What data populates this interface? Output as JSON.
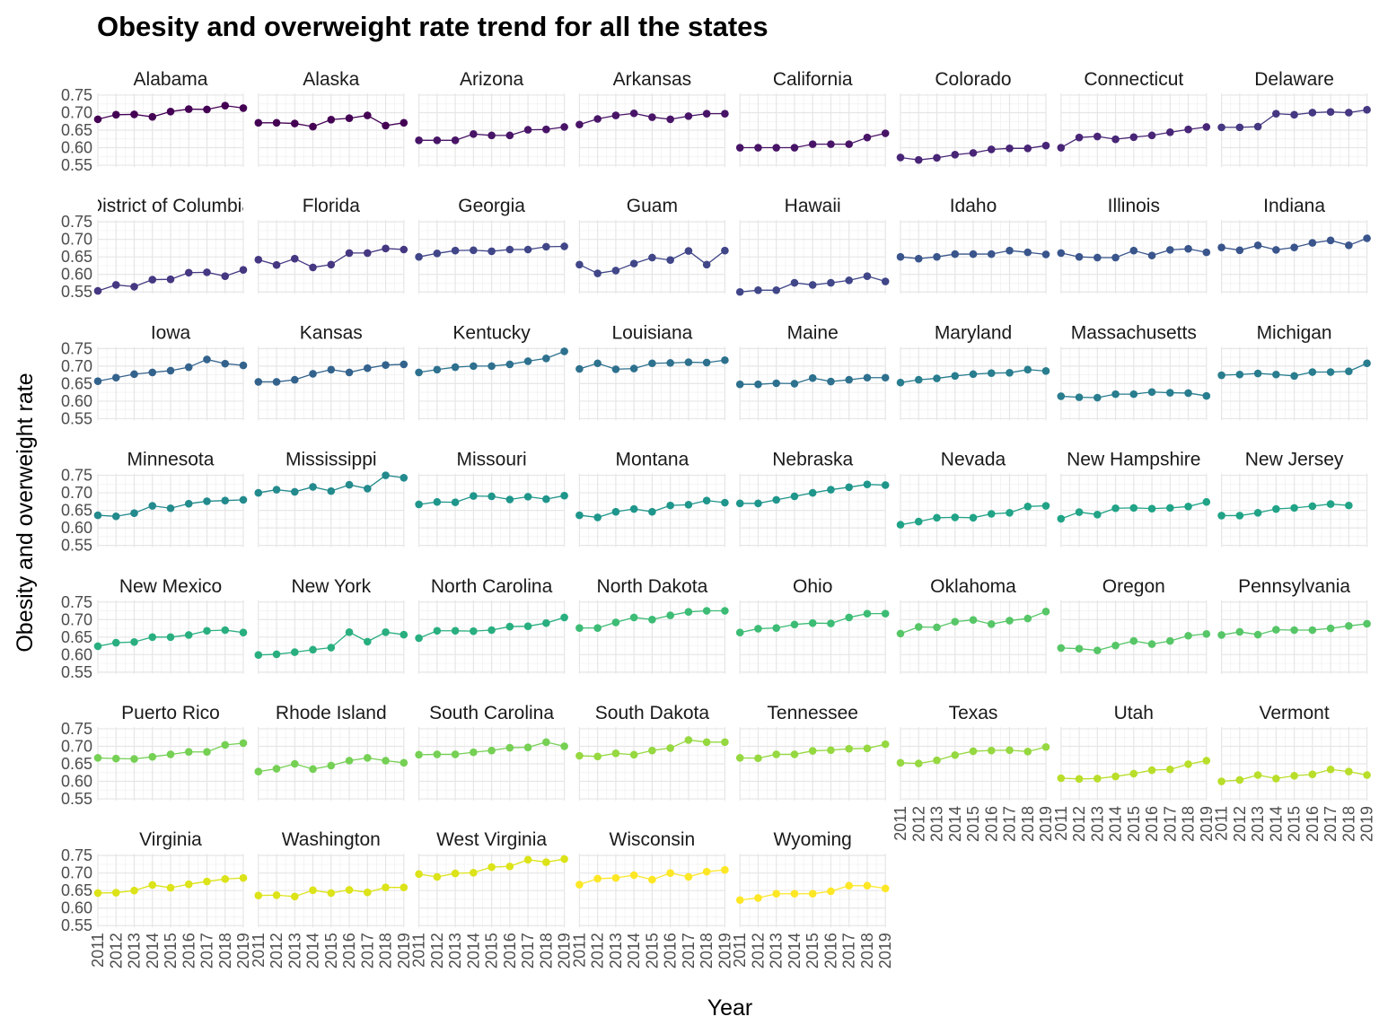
{
  "chart_data": {
    "type": "line",
    "title": "Obesity and overweight rate trend for all the states",
    "xlabel": "Year",
    "ylabel": "Obesity and overweight rate",
    "x": [
      2011,
      2012,
      2013,
      2014,
      2015,
      2016,
      2017,
      2018,
      2019
    ],
    "x_tick_labels": [
      "2011",
      "2012",
      "2013",
      "2014",
      "2015",
      "2016",
      "2017",
      "2018",
      "2019"
    ],
    "y_tick_labels": [
      "0.75",
      "0.70",
      "0.65",
      "0.60",
      "0.55"
    ],
    "y_ticks": [
      0.75,
      0.7,
      0.65,
      0.6,
      0.55
    ],
    "ylim": [
      0.545,
      0.755
    ],
    "xlim": [
      2011,
      2019
    ],
    "facet_columns": 8,
    "grid": true,
    "legend": "none",
    "colors": [
      "#440154",
      "#481467",
      "#482576",
      "#453781",
      "#404688",
      "#39558c",
      "#33638d",
      "#2d718e",
      "#287d8e",
      "#238a8d",
      "#1f968b",
      "#20a386",
      "#29af7f",
      "#3cbc75",
      "#56c667",
      "#75d054",
      "#95d840",
      "#b8de29",
      "#dce318",
      "#fde725"
    ],
    "series": [
      {
        "name": "Alabama",
        "values": [
          0.681,
          0.694,
          0.695,
          0.688,
          0.703,
          0.71,
          0.709,
          0.72,
          0.713
        ]
      },
      {
        "name": "Alaska",
        "values": [
          0.671,
          0.671,
          0.669,
          0.66,
          0.68,
          0.684,
          0.692,
          0.663,
          0.671
        ]
      },
      {
        "name": "Arizona",
        "values": [
          0.621,
          0.621,
          0.621,
          0.639,
          0.635,
          0.635,
          0.651,
          0.652,
          0.659
        ]
      },
      {
        "name": "Arkansas",
        "values": [
          0.666,
          0.682,
          0.692,
          0.698,
          0.687,
          0.681,
          0.69,
          0.697,
          0.697
        ]
      },
      {
        "name": "California",
        "values": [
          0.6,
          0.6,
          0.6,
          0.6,
          0.61,
          0.61,
          0.61,
          0.629,
          0.641
        ]
      },
      {
        "name": "Colorado",
        "values": [
          0.572,
          0.565,
          0.571,
          0.58,
          0.585,
          0.595,
          0.598,
          0.598,
          0.606
        ]
      },
      {
        "name": "Connecticut",
        "values": [
          0.6,
          0.629,
          0.632,
          0.624,
          0.63,
          0.635,
          0.644,
          0.652,
          0.659
        ]
      },
      {
        "name": "Delaware",
        "values": [
          0.658,
          0.658,
          0.66,
          0.697,
          0.694,
          0.7,
          0.702,
          0.7,
          0.708
        ]
      },
      {
        "name": "District of Columbia",
        "values": [
          0.553,
          0.57,
          0.565,
          0.585,
          0.586,
          0.605,
          0.606,
          0.595,
          0.613
        ]
      },
      {
        "name": "Florida",
        "values": [
          0.642,
          0.627,
          0.645,
          0.62,
          0.628,
          0.661,
          0.661,
          0.674,
          0.671
        ]
      },
      {
        "name": "Georgia",
        "values": [
          0.65,
          0.66,
          0.668,
          0.669,
          0.666,
          0.671,
          0.671,
          0.679,
          0.68
        ]
      },
      {
        "name": "Guam",
        "values": [
          0.628,
          0.603,
          0.611,
          0.631,
          0.648,
          0.641,
          0.667,
          0.628,
          0.668
        ]
      },
      {
        "name": "Hawaii",
        "values": [
          0.55,
          0.555,
          0.555,
          0.576,
          0.57,
          0.576,
          0.583,
          0.595,
          0.58
        ]
      },
      {
        "name": "Idaho",
        "values": [
          0.65,
          0.645,
          0.65,
          0.658,
          0.658,
          0.658,
          0.668,
          0.663,
          0.657
        ]
      },
      {
        "name": "Illinois",
        "values": [
          0.661,
          0.65,
          0.648,
          0.648,
          0.668,
          0.654,
          0.67,
          0.673,
          0.663
        ]
      },
      {
        "name": "Indiana",
        "values": [
          0.677,
          0.669,
          0.683,
          0.67,
          0.677,
          0.69,
          0.697,
          0.683,
          0.703
        ]
      },
      {
        "name": "Iowa",
        "values": [
          0.657,
          0.667,
          0.677,
          0.682,
          0.687,
          0.697,
          0.719,
          0.707,
          0.702
        ]
      },
      {
        "name": "Kansas",
        "values": [
          0.655,
          0.655,
          0.661,
          0.678,
          0.69,
          0.682,
          0.694,
          0.703,
          0.705
        ]
      },
      {
        "name": "Kentucky",
        "values": [
          0.682,
          0.69,
          0.697,
          0.7,
          0.7,
          0.705,
          0.714,
          0.722,
          0.742
        ]
      },
      {
        "name": "Louisiana",
        "values": [
          0.692,
          0.708,
          0.691,
          0.693,
          0.708,
          0.709,
          0.711,
          0.71,
          0.717
        ]
      },
      {
        "name": "Maine",
        "values": [
          0.648,
          0.648,
          0.651,
          0.65,
          0.666,
          0.656,
          0.661,
          0.667,
          0.667
        ]
      },
      {
        "name": "Maryland",
        "values": [
          0.653,
          0.661,
          0.665,
          0.672,
          0.677,
          0.68,
          0.681,
          0.69,
          0.686
        ]
      },
      {
        "name": "Massachusetts",
        "values": [
          0.614,
          0.611,
          0.61,
          0.62,
          0.62,
          0.626,
          0.624,
          0.623,
          0.615
        ]
      },
      {
        "name": "Michigan",
        "values": [
          0.674,
          0.676,
          0.679,
          0.676,
          0.672,
          0.683,
          0.683,
          0.685,
          0.708
        ]
      },
      {
        "name": "Minnesota",
        "values": [
          0.636,
          0.633,
          0.642,
          0.663,
          0.656,
          0.669,
          0.676,
          0.678,
          0.68
        ]
      },
      {
        "name": "Mississippi",
        "values": [
          0.7,
          0.709,
          0.703,
          0.717,
          0.705,
          0.723,
          0.712,
          0.75,
          0.743
        ]
      },
      {
        "name": "Missouri",
        "values": [
          0.667,
          0.674,
          0.673,
          0.691,
          0.69,
          0.681,
          0.689,
          0.682,
          0.692
        ]
      },
      {
        "name": "Montana",
        "values": [
          0.636,
          0.63,
          0.646,
          0.654,
          0.646,
          0.664,
          0.666,
          0.678,
          0.672
        ]
      },
      {
        "name": "Nebraska",
        "values": [
          0.67,
          0.67,
          0.68,
          0.69,
          0.7,
          0.709,
          0.716,
          0.724,
          0.722
        ]
      },
      {
        "name": "Nevada",
        "values": [
          0.609,
          0.618,
          0.629,
          0.63,
          0.629,
          0.64,
          0.643,
          0.661,
          0.663
        ]
      },
      {
        "name": "New Hampshire",
        "values": [
          0.626,
          0.645,
          0.638,
          0.656,
          0.657,
          0.655,
          0.657,
          0.661,
          0.674
        ]
      },
      {
        "name": "New Jersey",
        "values": [
          0.635,
          0.635,
          0.643,
          0.654,
          0.657,
          0.662,
          0.668,
          0.664,
          null
        ]
      },
      {
        "name": "New Mexico",
        "values": [
          0.624,
          0.634,
          0.636,
          0.65,
          0.65,
          0.656,
          0.668,
          0.67,
          0.663
        ]
      },
      {
        "name": "New York",
        "values": [
          0.599,
          0.601,
          0.607,
          0.614,
          0.62,
          0.664,
          0.637,
          0.664,
          0.657
        ]
      },
      {
        "name": "North Carolina",
        "values": [
          0.647,
          0.668,
          0.668,
          0.667,
          0.67,
          0.68,
          0.681,
          0.69,
          0.706
        ]
      },
      {
        "name": "North Dakota",
        "values": [
          0.676,
          0.676,
          0.692,
          0.706,
          0.7,
          0.712,
          0.722,
          0.725,
          0.725
        ]
      },
      {
        "name": "Ohio",
        "values": [
          0.663,
          0.674,
          0.676,
          0.686,
          0.69,
          0.689,
          0.706,
          0.717,
          0.717
        ]
      },
      {
        "name": "Oklahoma",
        "values": [
          0.66,
          0.679,
          0.678,
          0.694,
          0.699,
          0.687,
          0.697,
          0.703,
          0.723
        ]
      },
      {
        "name": "Oregon",
        "values": [
          0.619,
          0.617,
          0.612,
          0.626,
          0.639,
          0.63,
          0.639,
          0.654,
          0.659
        ]
      },
      {
        "name": "Pennsylvania",
        "values": [
          0.656,
          0.665,
          0.657,
          0.671,
          0.67,
          0.67,
          0.675,
          0.682,
          0.688
        ]
      },
      {
        "name": "Puerto Rico",
        "values": [
          0.667,
          0.665,
          0.664,
          0.67,
          0.677,
          0.684,
          0.684,
          0.704,
          0.709
        ]
      },
      {
        "name": "Rhode Island",
        "values": [
          0.628,
          0.636,
          0.65,
          0.635,
          0.645,
          0.659,
          0.667,
          0.659,
          0.653
        ]
      },
      {
        "name": "South Carolina",
        "values": [
          0.676,
          0.677,
          0.677,
          0.683,
          0.688,
          0.696,
          0.697,
          0.712,
          0.7
        ]
      },
      {
        "name": "South Dakota",
        "values": [
          0.673,
          0.671,
          0.68,
          0.676,
          0.688,
          0.695,
          0.718,
          0.712,
          0.712
        ]
      },
      {
        "name": "Tennessee",
        "values": [
          0.667,
          0.666,
          0.677,
          0.677,
          0.687,
          0.689,
          0.693,
          0.694,
          0.706
        ]
      },
      {
        "name": "Texas",
        "values": [
          0.653,
          0.651,
          0.66,
          0.675,
          0.686,
          0.688,
          0.689,
          0.685,
          0.698
        ]
      },
      {
        "name": "Utah",
        "values": [
          0.609,
          0.607,
          0.608,
          0.614,
          0.622,
          0.632,
          0.634,
          0.649,
          0.659
        ]
      },
      {
        "name": "Vermont",
        "values": [
          0.6,
          0.604,
          0.618,
          0.608,
          0.616,
          0.62,
          0.634,
          0.628,
          0.618
        ]
      },
      {
        "name": "Virginia",
        "values": [
          0.643,
          0.644,
          0.65,
          0.666,
          0.658,
          0.668,
          0.676,
          0.683,
          0.686
        ]
      },
      {
        "name": "Washington",
        "values": [
          0.636,
          0.637,
          0.633,
          0.651,
          0.643,
          0.652,
          0.645,
          0.659,
          0.659
        ]
      },
      {
        "name": "West Virginia",
        "values": [
          0.697,
          0.689,
          0.699,
          0.701,
          0.717,
          0.719,
          0.738,
          0.731,
          0.74
        ]
      },
      {
        "name": "Wisconsin",
        "values": [
          0.667,
          0.684,
          0.686,
          0.694,
          0.681,
          0.7,
          0.689,
          0.704,
          0.709
        ]
      },
      {
        "name": "Wyoming",
        "values": [
          0.623,
          0.629,
          0.641,
          0.641,
          0.641,
          0.648,
          0.664,
          0.664,
          0.656
        ]
      }
    ]
  }
}
